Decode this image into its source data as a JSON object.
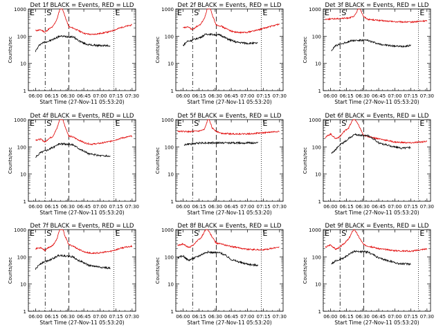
{
  "chart_data": {
    "type": "line",
    "layout": "3x3 grid of panels",
    "shared": {
      "xlabel": "Start Time (27-Nov-11 05:53:20)",
      "ylabel": "Counts/sec",
      "x_ticks": [
        "06:00",
        "06:15",
        "06:30",
        "06:45",
        "07:00",
        "07:15",
        "07:30"
      ],
      "y_ticks": [
        "1",
        "10",
        "100",
        "1000"
      ],
      "yscale": "log",
      "ylim": [
        1,
        1000
      ],
      "xlim": [
        "05:53:20",
        "07:33:20"
      ],
      "markers": [
        {
          "label": "E",
          "time": "05:53:20",
          "style": "dotted"
        },
        {
          "label": "S",
          "time": "06:09:00",
          "style": "dash-dot"
        },
        {
          "label": "",
          "time": "06:31:00",
          "style": "dashed"
        },
        {
          "label": "E",
          "time": "07:13:00",
          "style": "dotted"
        }
      ],
      "series_colors": {
        "events": "#000000",
        "lld": "#e00000"
      },
      "grid": false
    },
    "panels": [
      {
        "title": "Det  1f BLACK = Events, RED = LLD",
        "e2_time": "07:13:00",
        "lld": {
          "x": [
            "06:00",
            "06:05",
            "06:09",
            "06:12",
            "06:16",
            "06:20",
            "06:24",
            "06:27",
            "06:31",
            "06:35",
            "06:40",
            "06:46",
            "06:52",
            "07:00",
            "07:10",
            "07:20",
            "07:30"
          ],
          "y": [
            160,
            170,
            140,
            180,
            220,
            420,
            1500,
            600,
            220,
            200,
            160,
            125,
            115,
            125,
            150,
            210,
            260
          ]
        },
        "events": {
          "x": [
            "06:00",
            "06:04",
            "06:08",
            "06:12",
            "06:16",
            "06:20",
            "06:22",
            "06:35",
            "06:40",
            "06:45",
            "06:50",
            "07:00",
            "07:10"
          ],
          "y": [
            28,
            50,
            60,
            65,
            75,
            90,
            100,
            95,
            70,
            55,
            48,
            45,
            45
          ]
        }
      },
      {
        "title": "Det  2f BLACK = Events, RED = LLD",
        "e2_time": "07:13:00",
        "lld": {
          "x": [
            "06:00",
            "06:05",
            "06:09",
            "06:12",
            "06:16",
            "06:20",
            "06:24",
            "06:27",
            "06:31",
            "06:35",
            "06:40",
            "06:46",
            "06:52",
            "07:00",
            "07:10",
            "07:20",
            "07:30"
          ],
          "y": [
            200,
            220,
            170,
            220,
            260,
            450,
            1600,
            650,
            260,
            240,
            190,
            150,
            135,
            140,
            170,
            220,
            280
          ]
        },
        "events": {
          "x": [
            "06:00",
            "06:04",
            "06:08",
            "06:12",
            "06:16",
            "06:20",
            "06:22",
            "06:35",
            "06:40",
            "06:45",
            "06:50",
            "07:00",
            "07:10"
          ],
          "y": [
            45,
            65,
            70,
            80,
            90,
            110,
            120,
            110,
            85,
            70,
            60,
            55,
            55
          ]
        }
      },
      {
        "title": "Det  3f BLACK = Events, RED = LLD",
        "e2_time": "07:22:00",
        "lld": {
          "x": [
            "05:55",
            "06:05",
            "06:15",
            "06:22",
            "06:27",
            "06:31",
            "06:35",
            "06:45",
            "07:00",
            "07:15",
            "07:30"
          ],
          "y": [
            420,
            440,
            460,
            520,
            1200,
            520,
            420,
            380,
            340,
            330,
            370
          ]
        },
        "events": {
          "x": [
            "06:01",
            "06:05",
            "06:12",
            "06:15",
            "06:20",
            "06:35",
            "06:40",
            "06:45",
            "06:55",
            "07:05",
            "07:15"
          ],
          "y": [
            30,
            45,
            55,
            60,
            70,
            70,
            60,
            52,
            45,
            42,
            45
          ]
        }
      },
      {
        "title": "Det  4f BLACK = Events, RED = LLD",
        "e2_time": "07:13:00",
        "lld": {
          "x": [
            "06:00",
            "06:05",
            "06:09",
            "06:12",
            "06:16",
            "06:20",
            "06:24",
            "06:27",
            "06:31",
            "06:35",
            "06:40",
            "06:46",
            "06:52",
            "07:00",
            "07:10",
            "07:20",
            "07:30"
          ],
          "y": [
            180,
            190,
            150,
            200,
            240,
            480,
            1600,
            650,
            250,
            230,
            180,
            140,
            125,
            135,
            160,
            210,
            250
          ]
        },
        "events": {
          "x": [
            "06:00",
            "06:04",
            "06:08",
            "06:12",
            "06:16",
            "06:20",
            "06:22",
            "06:35",
            "06:40",
            "06:45",
            "06:50",
            "07:00",
            "07:10"
          ],
          "y": [
            40,
            60,
            70,
            80,
            95,
            115,
            130,
            120,
            90,
            70,
            55,
            48,
            45
          ]
        }
      },
      {
        "title": "Det  5f BLACK = Events, RED = LLD",
        "e2_time": "07:13:00",
        "lld": {
          "x": [
            "05:55",
            "06:05",
            "06:15",
            "06:20",
            "06:24",
            "06:27",
            "06:31",
            "06:35",
            "06:45",
            "07:00",
            "07:15",
            "07:30"
          ],
          "y": [
            380,
            360,
            380,
            430,
            1250,
            500,
            380,
            320,
            300,
            300,
            330,
            370
          ]
        },
        "events": {
          "x": [
            "06:01",
            "06:05",
            "06:10",
            "06:15",
            "06:20",
            "06:35",
            "06:40",
            "06:50",
            "07:00",
            "07:10"
          ],
          "y": [
            120,
            125,
            130,
            140,
            140,
            140,
            140,
            140,
            140,
            140
          ]
        }
      },
      {
        "title": "Det  6f BLACK = Events, RED = LLD",
        "e2_time": "07:22:00",
        "lld": {
          "x": [
            "05:55",
            "06:00",
            "06:05",
            "06:09",
            "06:13",
            "06:17",
            "06:22",
            "06:27",
            "06:31",
            "06:35",
            "06:45",
            "07:00",
            "07:15",
            "07:30"
          ],
          "y": [
            220,
            300,
            200,
            240,
            380,
            500,
            1200,
            550,
            260,
            240,
            200,
            150,
            140,
            160
          ]
        },
        "events": {
          "x": [
            "06:01",
            "06:05",
            "06:09",
            "06:13",
            "06:17",
            "06:22",
            "06:35",
            "06:40",
            "06:45",
            "06:55",
            "07:05",
            "07:15"
          ],
          "y": [
            60,
            80,
            120,
            150,
            200,
            280,
            260,
            200,
            140,
            110,
            90,
            95
          ]
        }
      },
      {
        "title": "Det  7f BLACK = Events, RED = LLD",
        "e2_time": "07:13:00",
        "lld": {
          "x": [
            "06:00",
            "06:05",
            "06:09",
            "06:12",
            "06:16",
            "06:20",
            "06:24",
            "06:27",
            "06:31",
            "06:35",
            "06:40",
            "06:46",
            "06:52",
            "07:00",
            "07:10",
            "07:20",
            "07:30"
          ],
          "y": [
            200,
            220,
            170,
            220,
            260,
            450,
            1700,
            650,
            280,
            250,
            190,
            150,
            135,
            140,
            160,
            210,
            250
          ]
        },
        "events": {
          "x": [
            "06:00",
            "06:04",
            "06:08",
            "06:12",
            "06:16",
            "06:20",
            "06:22",
            "06:35",
            "06:40",
            "06:45",
            "06:50",
            "07:00",
            "07:10"
          ],
          "y": [
            35,
            55,
            65,
            75,
            85,
            105,
            115,
            100,
            75,
            60,
            48,
            42,
            38
          ]
        }
      },
      {
        "title": "Det  8f BLACK = Events, RED = LLD",
        "e2_time": "07:13:00",
        "lld": {
          "x": [
            "05:55",
            "06:00",
            "06:05",
            "06:09",
            "06:13",
            "06:17",
            "06:22",
            "06:27",
            "06:31",
            "06:35",
            "06:45",
            "07:00",
            "07:15",
            "07:30"
          ],
          "y": [
            260,
            300,
            220,
            260,
            380,
            500,
            1200,
            550,
            320,
            300,
            240,
            190,
            180,
            230
          ]
        },
        "events": {
          "x": [
            "05:55",
            "06:00",
            "06:05",
            "06:09",
            "06:13",
            "06:17",
            "06:22",
            "06:35",
            "06:40",
            "06:45",
            "06:55",
            "07:05",
            "07:10"
          ],
          "y": [
            90,
            110,
            75,
            85,
            100,
            120,
            150,
            140,
            110,
            80,
            60,
            50,
            50
          ]
        }
      },
      {
        "title": "Det  9f BLACK = Events, RED = LLD",
        "e2_time": "07:22:00",
        "lld": {
          "x": [
            "05:55",
            "06:00",
            "06:05",
            "06:09",
            "06:13",
            "06:17",
            "06:22",
            "06:27",
            "06:31",
            "06:35",
            "06:45",
            "07:00",
            "07:15",
            "07:30"
          ],
          "y": [
            220,
            280,
            190,
            230,
            320,
            450,
            1100,
            500,
            280,
            250,
            200,
            170,
            160,
            200
          ]
        },
        "events": {
          "x": [
            "06:01",
            "06:05",
            "06:09",
            "06:13",
            "06:17",
            "06:22",
            "06:35",
            "06:40",
            "06:45",
            "06:55",
            "07:05",
            "07:15"
          ],
          "y": [
            55,
            70,
            80,
            95,
            120,
            160,
            150,
            120,
            90,
            70,
            55,
            55
          ]
        }
      }
    ]
  }
}
